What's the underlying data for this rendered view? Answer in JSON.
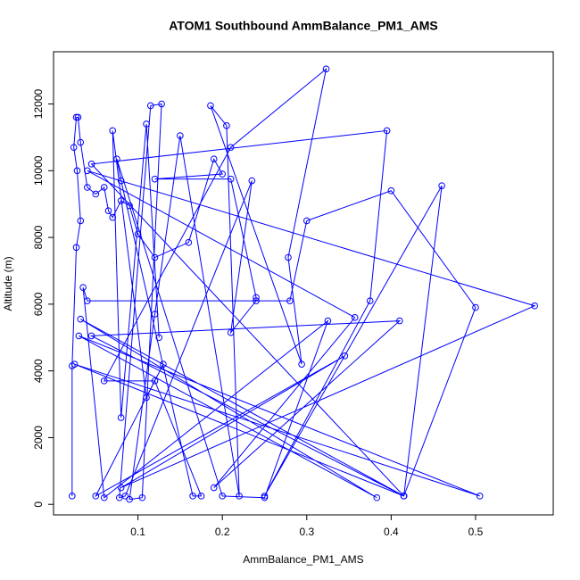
{
  "chart_data": {
    "type": "line",
    "title": "ATOM1 Southbound AmmBalance_PM1_AMS",
    "x_label": "AmmBalance_PM1_AMS",
    "y_label": "Altitude (m)",
    "color": "#0000ff",
    "markers": true,
    "xlim": [
      0,
      0.592
    ],
    "ylim": [
      -315,
      13565
    ],
    "xticks": [
      0.1,
      0.2,
      0.3,
      0.4,
      0.5
    ],
    "yticks": [
      0,
      2000,
      4000,
      6000,
      8000,
      10000,
      12000
    ],
    "x": [
      0.022,
      0.022,
      0.027,
      0.032,
      0.028,
      0.024,
      0.027,
      0.029,
      0.032,
      0.04,
      0.05,
      0.06,
      0.065,
      0.07,
      0.08,
      0.09,
      0.1,
      0.12,
      0.16,
      0.19,
      0.2,
      0.12,
      0.21,
      0.24,
      0.24,
      0.21,
      0.235,
      0.085,
      0.078,
      0.115,
      0.128,
      0.105,
      0.09,
      0.12,
      0.15,
      0.22,
      0.205,
      0.186,
      0.294,
      0.278,
      0.323,
      0.21,
      0.06,
      0.12,
      0.175,
      0.165,
      0.08,
      0.075,
      0.2,
      0.25,
      0.325,
      0.06,
      0.035,
      0.04,
      0.28,
      0.3,
      0.4,
      0.5,
      0.415,
      0.045,
      0.395,
      0.375,
      0.25,
      0.46,
      0.415,
      0.025,
      0.505,
      0.03,
      0.383,
      0.032,
      0.415,
      0.045,
      0.41,
      0.19,
      0.357,
      0.04,
      0.57,
      0.08,
      0.345,
      0.05,
      0.13,
      0.11,
      0.07,
      0.08,
      0.11,
      0.125
    ],
    "values": [
      250,
      4150,
      7700,
      8500,
      10000,
      10700,
      11600,
      11600,
      10850,
      9500,
      9300,
      9500,
      8800,
      8600,
      9100,
      8950,
      8100,
      7400,
      7850,
      10350,
      9900,
      9750,
      9750,
      6200,
      6100,
      5150,
      9700,
      250,
      200,
      11950,
      12000,
      200,
      150,
      5700,
      11050,
      250,
      11350,
      11950,
      4200,
      7400,
      13050,
      10700,
      3700,
      3700,
      250,
      250,
      9700,
      10350,
      250,
      200,
      5500,
      200,
      6500,
      6100,
      6100,
      8500,
      9400,
      5900,
      250,
      10200,
      11200,
      6100,
      250,
      9550,
      250,
      4200,
      250,
      5050,
      200,
      5550,
      250,
      5050,
      5500,
      500,
      5600,
      10000,
      5950,
      500,
      4450,
      250,
      4200,
      3200,
      11200,
      2600,
      11400,
      5000
    ]
  }
}
